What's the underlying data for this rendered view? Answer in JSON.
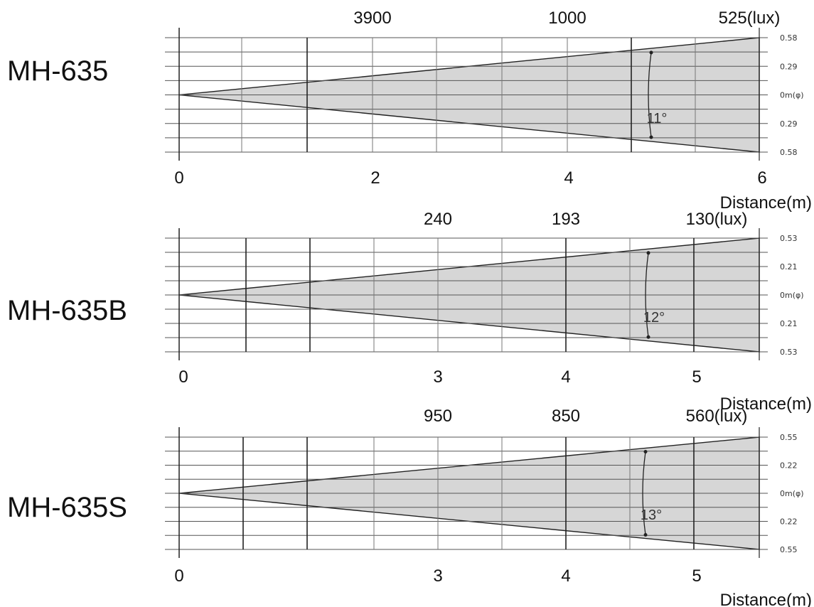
{
  "colors": {
    "beam_fill": "#d6d6d6",
    "grid_line": "#555555",
    "heavy_line": "#222222"
  },
  "chart_data": [
    {
      "type": "beam-angle-diagram",
      "model": "MH-635",
      "lux_labels": [
        "3900",
        "1000",
        "525(lux)"
      ],
      "x_tick_labels": [
        "0",
        "2",
        "4",
        "6"
      ],
      "x_axis_label": "Distance(m)",
      "max_distance_m": 6,
      "beam_angle": "11°",
      "side_labels": [
        "0.58",
        "0.29",
        "0m(φ)",
        "0.29",
        "0.58"
      ]
    },
    {
      "type": "beam-angle-diagram",
      "model": "MH-635B",
      "lux_labels": [
        "240",
        "193",
        "130(lux)"
      ],
      "x_tick_labels": [
        "0",
        "3",
        "4",
        "5"
      ],
      "x_axis_label": "Distance(m)",
      "max_distance_m": 6,
      "beam_angle": "12°",
      "side_labels": [
        "0.53",
        "0.21",
        "0m(φ)",
        "0.21",
        "0.53"
      ]
    },
    {
      "type": "beam-angle-diagram",
      "model": "MH-635S",
      "lux_labels": [
        "950",
        "850",
        "560(lux)"
      ],
      "x_tick_labels": [
        "0",
        "3",
        "4",
        "5"
      ],
      "x_axis_label": "Distance(m)",
      "max_distance_m": 6,
      "beam_angle": "13°",
      "side_labels": [
        "0.55",
        "0.22",
        "0m(φ)",
        "0.22",
        "0.55"
      ]
    }
  ]
}
